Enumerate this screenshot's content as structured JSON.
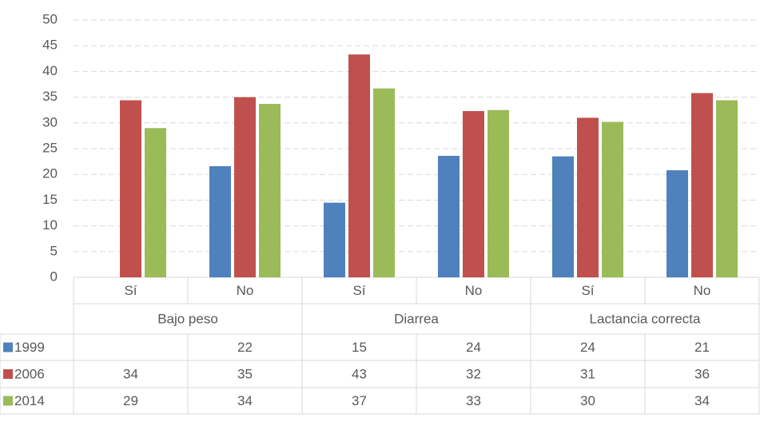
{
  "chart_data": {
    "type": "bar",
    "categories": [
      "Sí",
      "No",
      "Sí",
      "No",
      "Sí",
      "No"
    ],
    "groups": [
      "Bajo peso",
      "Diarrea",
      "Lactancia correcta"
    ],
    "series": [
      {
        "name": "1999",
        "color": "#4f81bd",
        "values": [
          null,
          21.6,
          14.5,
          23.6,
          23.5,
          20.8
        ],
        "value_labels": [
          null,
          "22",
          "15",
          "24",
          "24",
          "21"
        ]
      },
      {
        "name": "2006",
        "color": "#c0504d",
        "values": [
          34.4,
          35.0,
          43.3,
          32.3,
          31.0,
          35.8
        ],
        "value_labels": [
          "34",
          "35",
          "43",
          "32",
          "31",
          "36"
        ]
      },
      {
        "name": "2014",
        "color": "#9bbb59",
        "values": [
          29.0,
          33.7,
          36.7,
          32.5,
          30.2,
          34.4
        ],
        "value_labels": [
          "29",
          "34",
          "37",
          "33",
          "30",
          "34"
        ]
      }
    ],
    "ylim": [
      0,
      50
    ],
    "yticks": [
      0,
      5,
      10,
      15,
      20,
      25,
      30,
      35,
      40,
      45,
      50
    ],
    "grid": true
  }
}
